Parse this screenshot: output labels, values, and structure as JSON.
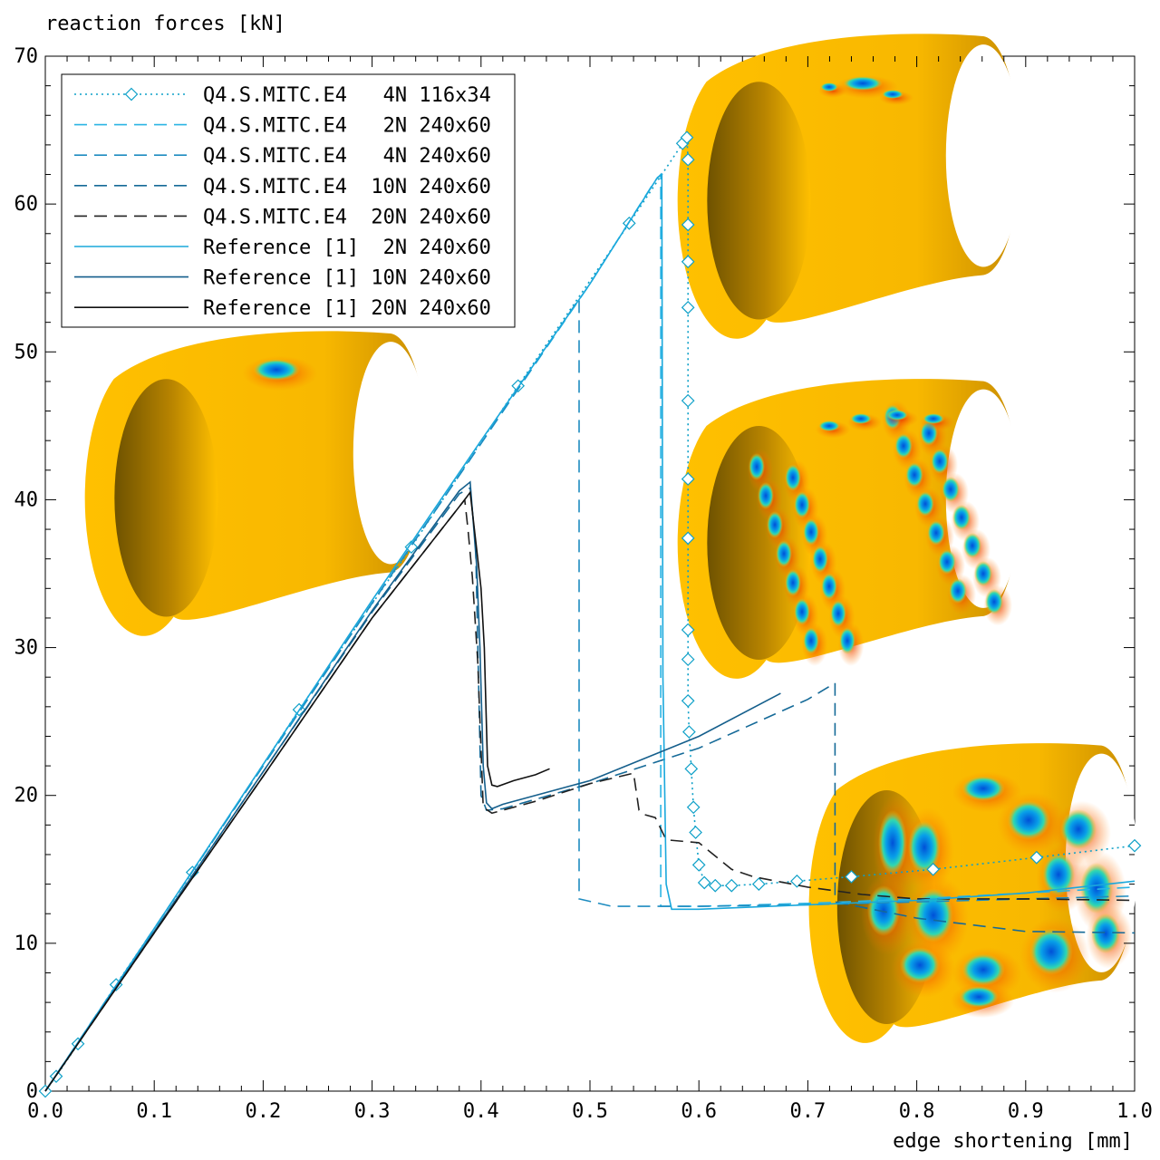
{
  "chart_data": {
    "type": "line",
    "title": "",
    "xlabel": "edge shortening [mm]",
    "ylabel": "reaction forces [kN]",
    "xlim": [
      0.0,
      1.0
    ],
    "ylim": [
      0,
      70
    ],
    "xticks": [
      0.0,
      0.1,
      0.2,
      0.3,
      0.4,
      0.5,
      0.6,
      0.7,
      0.8,
      0.9,
      1.0
    ],
    "xtick_labels": [
      "0.0",
      "0.1",
      "0.2",
      "0.3",
      "0.4",
      "0.5",
      "0.6",
      "0.7",
      "0.8",
      "0.9",
      "1.0"
    ],
    "yticks": [
      0,
      10,
      20,
      30,
      40,
      50,
      60,
      70
    ],
    "ytick_labels": [
      "0",
      "10",
      "20",
      "30",
      "40",
      "50",
      "60",
      "70"
    ],
    "grid": false,
    "legend_position": "top-left",
    "series": [
      {
        "name": "Q4.S.MITC.E4   4N 116x34",
        "color": "#0ea0c8",
        "style": "dotted",
        "marker": "diamond",
        "x": [
          0.0,
          0.01,
          0.03,
          0.065,
          0.135,
          0.233,
          0.336,
          0.434,
          0.536,
          0.585,
          0.589,
          0.59,
          0.59,
          0.59,
          0.59,
          0.59,
          0.59,
          0.59,
          0.59,
          0.59,
          0.59,
          0.591,
          0.593,
          0.595,
          0.597,
          0.6,
          0.605,
          0.615,
          0.63,
          0.655,
          0.69,
          0.74,
          0.815,
          0.91,
          1.0
        ],
        "y": [
          0.0,
          1.0,
          3.2,
          7.2,
          14.8,
          25.8,
          36.8,
          47.7,
          58.7,
          64.1,
          64.5,
          63.0,
          58.6,
          56.1,
          53.0,
          46.7,
          41.4,
          37.4,
          31.2,
          29.2,
          26.4,
          24.3,
          21.8,
          19.2,
          17.5,
          15.3,
          14.1,
          13.9,
          13.9,
          14.0,
          14.2,
          14.5,
          15.0,
          15.8,
          16.6
        ]
      },
      {
        "name": "Q4.S.MITC.E4   2N 240x60",
        "color": "#2ab4e4",
        "style": "dashed",
        "x": [
          0.0,
          0.1,
          0.2,
          0.3,
          0.4,
          0.5,
          0.56,
          0.565,
          0.565,
          0.6,
          0.7,
          0.8,
          0.9,
          1.0
        ],
        "y": [
          0.0,
          11.0,
          22.0,
          33.0,
          43.8,
          54.6,
          61.6,
          62.0,
          12.5,
          12.5,
          12.7,
          13.0,
          13.4,
          13.8
        ]
      },
      {
        "name": "Q4.S.MITC.E4   4N 240x60",
        "color": "#1e8cc0",
        "style": "dashed",
        "x": [
          0.0,
          0.1,
          0.2,
          0.3,
          0.4,
          0.49,
          0.49,
          0.52,
          0.56,
          0.6,
          0.7,
          0.8,
          0.9,
          1.0
        ],
        "y": [
          0.0,
          11.0,
          22.0,
          33.0,
          43.8,
          53.6,
          13.0,
          12.5,
          12.5,
          12.5,
          12.6,
          12.8,
          13.0,
          13.2
        ]
      },
      {
        "name": "Q4.S.MITC.E4  10N 240x60",
        "color": "#156a98",
        "style": "dashed",
        "x": [
          0.0,
          0.1,
          0.2,
          0.3,
          0.38,
          0.39,
          0.395,
          0.4,
          0.405,
          0.42,
          0.5,
          0.6,
          0.7,
          0.725,
          0.725,
          0.8,
          0.9,
          1.0
        ],
        "y": [
          0.0,
          10.8,
          21.6,
          32.4,
          40.4,
          40.8,
          37.0,
          20.0,
          19.0,
          19.1,
          20.8,
          23.2,
          26.5,
          27.6,
          12.8,
          11.7,
          10.8,
          10.7
        ]
      },
      {
        "name": "Q4.S.MITC.E4  20N 240x60",
        "color": "#222222",
        "style": "dashed",
        "x": [
          0.0,
          0.1,
          0.2,
          0.3,
          0.385,
          0.388,
          0.392,
          0.397,
          0.402,
          0.41,
          0.45,
          0.5,
          0.54,
          0.545,
          0.55,
          0.56,
          0.57,
          0.6,
          0.63,
          0.65,
          0.7,
          0.75,
          0.8,
          0.9,
          1.0
        ],
        "y": [
          0.0,
          10.7,
          21.3,
          32.0,
          40.0,
          38.0,
          34.8,
          29.0,
          19.2,
          18.8,
          19.6,
          20.8,
          21.5,
          19.0,
          18.7,
          18.5,
          17.0,
          16.8,
          15.0,
          14.5,
          13.8,
          13.3,
          13.0,
          13.0,
          12.9
        ]
      },
      {
        "name": "Reference [1]  2N 240x60",
        "color": "#1aa8dc",
        "style": "solid",
        "x": [
          0.0,
          0.1,
          0.2,
          0.3,
          0.4,
          0.5,
          0.562,
          0.566,
          0.567,
          0.57,
          0.575,
          0.6,
          0.7,
          0.8,
          0.9,
          1.0
        ],
        "y": [
          0.0,
          11.0,
          22.1,
          33.2,
          44.0,
          54.6,
          61.8,
          62.0,
          28.0,
          14.0,
          12.3,
          12.3,
          12.6,
          12.9,
          13.4,
          14.2
        ]
      },
      {
        "name": "Reference [1] 10N 240x60",
        "color": "#155f8c",
        "style": "solid",
        "x": [
          0.0,
          0.1,
          0.2,
          0.3,
          0.38,
          0.39,
          0.396,
          0.399,
          0.402,
          0.405,
          0.41,
          0.42,
          0.5,
          0.6,
          0.675
        ],
        "y": [
          0.0,
          10.8,
          21.6,
          32.5,
          40.6,
          41.2,
          35.5,
          30.0,
          22.0,
          19.5,
          19.1,
          19.4,
          21.0,
          24.0,
          26.9
        ]
      },
      {
        "name": "Reference [1] 20N 240x60",
        "color": "#111111",
        "style": "solid",
        "x": [
          0.0,
          0.1,
          0.2,
          0.3,
          0.385,
          0.39,
          0.397,
          0.4,
          0.403,
          0.406,
          0.41,
          0.415,
          0.43,
          0.45,
          0.463
        ],
        "y": [
          0.0,
          10.7,
          21.3,
          32.0,
          40.0,
          40.5,
          36.0,
          34.0,
          30.0,
          22.0,
          20.7,
          20.6,
          21.0,
          21.4,
          21.8
        ]
      }
    ]
  }
}
